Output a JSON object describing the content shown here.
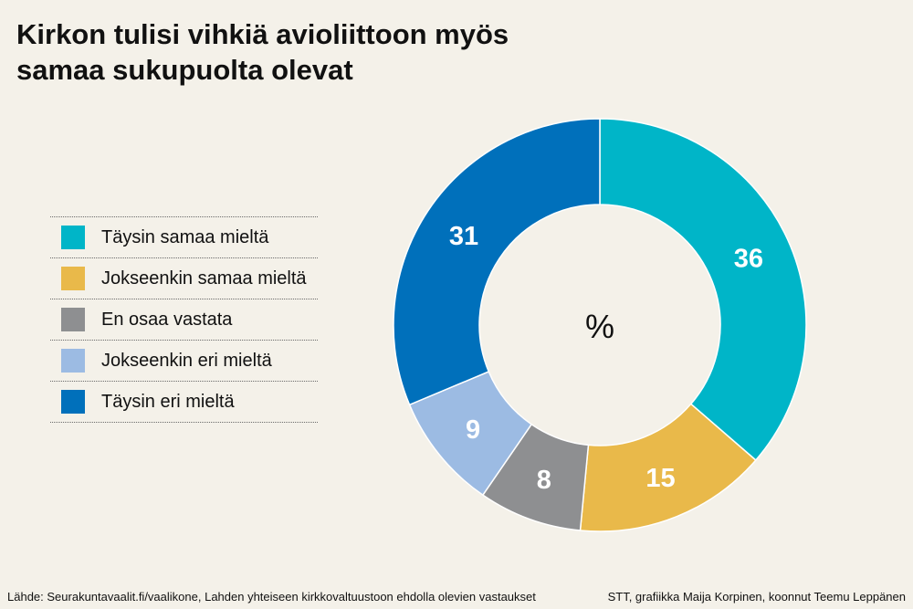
{
  "title_line1": "Kirkon tulisi vihkiä avioliittoon myös",
  "title_line2": "samaa sukupuolta olevat",
  "center_label": "%",
  "source": "Lähde: Seurakuntavaalit.fi/vaalikone, Lahden yhteiseen kirkkovaltuustoon ehdolla olevien vastaukset",
  "credit": "STT, grafiikka Maija Korpinen, koonnut Teemu Leppänen",
  "chart_data": {
    "type": "pie",
    "donut": true,
    "unit": "%",
    "categories": [
      "Täysin samaa mieltä",
      "Jokseenkin samaa mieltä",
      "En osaa vastata",
      "Jokseenkin eri mieltä",
      "Täysin eri mieltä"
    ],
    "values": [
      36,
      15,
      8,
      9,
      31
    ],
    "colors": [
      "#00b5c8",
      "#e9b94a",
      "#8e8f91",
      "#9cbbe3",
      "#0070bb"
    ],
    "label_colors": [
      "#ffffff",
      "#ffffff",
      "#ffffff",
      "#ffffff",
      "#ffffff"
    ],
    "legend_position": "left"
  }
}
